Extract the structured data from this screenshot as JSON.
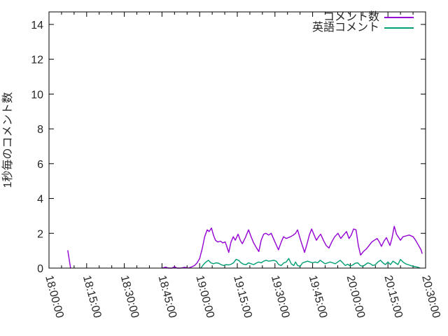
{
  "page": {
    "background": "#ffffff",
    "axis_color": "#000000",
    "text_color": "#262626"
  },
  "chart_data": {
    "type": "line",
    "title": "",
    "xlabel": "",
    "ylabel": "1秒毎のコメント数",
    "grid": false,
    "legend_position": "top-right-inside",
    "x_unit": "minutes after 18:00:00",
    "x_axis": {
      "tick_labels": [
        "18:00:00",
        "18:15:00",
        "18:30:00",
        "18:45:00",
        "19:00:00",
        "19:15:00",
        "19:30:00",
        "19:45:00",
        "20:00:00",
        "20:15:00",
        "20:30:00"
      ],
      "tick_minutes": [
        0,
        15,
        30,
        45,
        60,
        75,
        90,
        105,
        120,
        135,
        150
      ],
      "minor_tick_interval_minutes": 5,
      "range_minutes": [
        0,
        150
      ],
      "label_rotation_deg": 75
    },
    "y_axis": {
      "tick_values": [
        0,
        2,
        4,
        6,
        8,
        10,
        12,
        14
      ],
      "range": [
        0,
        14.72
      ]
    },
    "series": [
      {
        "name": "コメント数",
        "color": "#9400d3",
        "segments": [
          [
            [
              7.5,
              1.0
            ],
            [
              8.6,
              0
            ]
          ],
          [
            [
              45,
              0
            ],
            [
              46.5,
              0.06
            ],
            [
              47.5,
              0
            ],
            [
              49,
              0
            ],
            [
              50,
              0.08
            ],
            [
              51,
              0
            ],
            [
              52.5,
              0
            ],
            [
              54,
              0.05
            ],
            [
              55.5,
              0
            ],
            [
              57,
              0.08
            ],
            [
              58,
              0.15
            ],
            [
              59,
              0.3
            ],
            [
              60,
              0.55
            ],
            [
              61,
              1.1
            ],
            [
              62,
              1.8
            ],
            [
              63,
              2.2
            ],
            [
              63.8,
              2.1
            ],
            [
              64.7,
              2.3
            ],
            [
              65.5,
              1.9
            ],
            [
              66.3,
              1.6
            ],
            [
              67.2,
              1.5
            ],
            [
              68.3,
              1.55
            ],
            [
              69.2,
              1.45
            ],
            [
              70.2,
              1.5
            ],
            [
              71,
              1.15
            ],
            [
              71.6,
              0.9
            ],
            [
              72.5,
              1.5
            ],
            [
              73.4,
              1.8
            ],
            [
              74.2,
              1.6
            ],
            [
              75.3,
              1.95
            ],
            [
              76.2,
              1.6
            ],
            [
              77,
              1.4
            ],
            [
              78.2,
              1.75
            ],
            [
              79.5,
              2.2
            ],
            [
              80.5,
              1.8
            ],
            [
              81.5,
              1.45
            ],
            [
              82.5,
              1.2
            ],
            [
              83.6,
              0.95
            ],
            [
              84.5,
              1.6
            ],
            [
              85.5,
              1.95
            ],
            [
              86.4,
              2.0
            ],
            [
              87.5,
              1.9
            ],
            [
              88.5,
              2.0
            ],
            [
              90,
              1.5
            ],
            [
              91.4,
              1.05
            ],
            [
              92.5,
              1.5
            ],
            [
              93.4,
              1.8
            ],
            [
              94.5,
              1.7
            ],
            [
              95.3,
              1.75
            ],
            [
              96.2,
              1.8
            ],
            [
              97.3,
              1.9
            ],
            [
              98.2,
              2.0
            ],
            [
              99,
              2.2
            ],
            [
              100,
              1.7
            ],
            [
              100.9,
              1.3
            ],
            [
              101.8,
              0.9
            ],
            [
              102.8,
              1.4
            ],
            [
              103.7,
              1.9
            ],
            [
              104.6,
              2.25
            ],
            [
              105.6,
              1.9
            ],
            [
              106.5,
              1.6
            ],
            [
              107.4,
              1.8
            ],
            [
              108.2,
              1.95
            ],
            [
              109.3,
              1.6
            ],
            [
              110.4,
              1.3
            ],
            [
              111.5,
              1.15
            ],
            [
              112.6,
              1.5
            ],
            [
              113.8,
              1.8
            ],
            [
              115.1,
              2.0
            ],
            [
              116.2,
              1.7
            ],
            [
              117.3,
              1.9
            ],
            [
              118.5,
              2.1
            ],
            [
              119.5,
              1.7
            ],
            [
              120.4,
              1.9
            ],
            [
              121.3,
              2.25
            ],
            [
              122.3,
              2.2
            ],
            [
              123.2,
              1.3
            ],
            [
              124.1,
              0.75
            ],
            [
              125.2,
              0.95
            ],
            [
              126.4,
              1.1
            ],
            [
              127.5,
              1.3
            ],
            [
              128.6,
              1.5
            ],
            [
              129.6,
              1.6
            ],
            [
              130.7,
              1.7
            ],
            [
              131.6,
              1.5
            ],
            [
              132.4,
              1.25
            ],
            [
              133.4,
              1.55
            ],
            [
              134.4,
              1.75
            ],
            [
              135.8,
              1.3
            ],
            [
              136.6,
              1.7
            ],
            [
              137.5,
              2.4
            ],
            [
              138.4,
              1.95
            ],
            [
              140,
              1.6
            ],
            [
              141,
              1.8
            ],
            [
              142.2,
              1.85
            ],
            [
              143.5,
              1.9
            ],
            [
              145,
              1.8
            ],
            [
              146,
              1.6
            ],
            [
              147.2,
              1.3
            ],
            [
              148.2,
              1.05
            ],
            [
              148.6,
              0.85
            ]
          ]
        ]
      },
      {
        "name": "英語コメント",
        "color": "#009e73",
        "segments": [
          [
            [
              60.5,
              0
            ],
            [
              61.5,
              0.2
            ],
            [
              62.5,
              0.35
            ],
            [
              63.5,
              0.45
            ],
            [
              64.5,
              0.3
            ],
            [
              65.5,
              0.25
            ],
            [
              66.5,
              0.3
            ],
            [
              67.5,
              0.28
            ],
            [
              68.5,
              0.2
            ],
            [
              69.5,
              0.15
            ],
            [
              70.5,
              0.2
            ],
            [
              71.5,
              0.18
            ],
            [
              72.5,
              0.22
            ],
            [
              73.5,
              0.3
            ],
            [
              74.5,
              0.5
            ],
            [
              75.5,
              0.45
            ],
            [
              76.5,
              0.3
            ],
            [
              77.5,
              0.22
            ],
            [
              78.5,
              0.2
            ],
            [
              79.5,
              0.3
            ],
            [
              80.5,
              0.25
            ],
            [
              81.5,
              0.2
            ],
            [
              82.5,
              0.28
            ],
            [
              83.5,
              0.35
            ],
            [
              84.5,
              0.3
            ],
            [
              85.5,
              0.4
            ],
            [
              86.5,
              0.45
            ],
            [
              87.5,
              0.4
            ],
            [
              88.5,
              0.42
            ],
            [
              89.5,
              0.45
            ],
            [
              90.5,
              0.4
            ],
            [
              91.5,
              0.2
            ],
            [
              92.5,
              0.15
            ],
            [
              93.5,
              0.3
            ],
            [
              94.5,
              0.35
            ],
            [
              95.5,
              0.55
            ],
            [
              96.5,
              0.25
            ],
            [
              97.5,
              0.15
            ],
            [
              98.2,
              0.35
            ],
            [
              99,
              0.15
            ],
            [
              100,
              0.1
            ],
            [
              101,
              0.3
            ],
            [
              102,
              0.35
            ],
            [
              103,
              0.4
            ],
            [
              104,
              0.35
            ],
            [
              105,
              0.3
            ],
            [
              106,
              0.35
            ],
            [
              107,
              0.3
            ],
            [
              108,
              0.45
            ],
            [
              109,
              0.35
            ],
            [
              110,
              0.25
            ],
            [
              111,
              0.3
            ],
            [
              112,
              0.35
            ],
            [
              113,
              0.3
            ],
            [
              114,
              0.25
            ],
            [
              115,
              0.35
            ],
            [
              116,
              0.45
            ],
            [
              117,
              0.3
            ],
            [
              118,
              0.15
            ],
            [
              119,
              0.22
            ],
            [
              120,
              0.12
            ],
            [
              121,
              0.18
            ],
            [
              122,
              0.28
            ],
            [
              123,
              0.3
            ],
            [
              124,
              0.15
            ],
            [
              125,
              0.1
            ],
            [
              126,
              0.2
            ],
            [
              127,
              0.3
            ],
            [
              128,
              0.25
            ],
            [
              129,
              0.15
            ],
            [
              130,
              0.2
            ],
            [
              131,
              0.35
            ],
            [
              132,
              0.45
            ],
            [
              133,
              0.3
            ],
            [
              134,
              0.2
            ],
            [
              135,
              0.35
            ],
            [
              136,
              0.2
            ],
            [
              137,
              0.4
            ],
            [
              138,
              0.3
            ],
            [
              139,
              0.2
            ],
            [
              140,
              0.5
            ],
            [
              141,
              0.35
            ],
            [
              142,
              0.25
            ],
            [
              143,
              0.2
            ],
            [
              144,
              0.15
            ],
            [
              145,
              0.1
            ],
            [
              146,
              0.08
            ],
            [
              147,
              0.05
            ],
            [
              147.8,
              0
            ]
          ]
        ]
      }
    ]
  }
}
